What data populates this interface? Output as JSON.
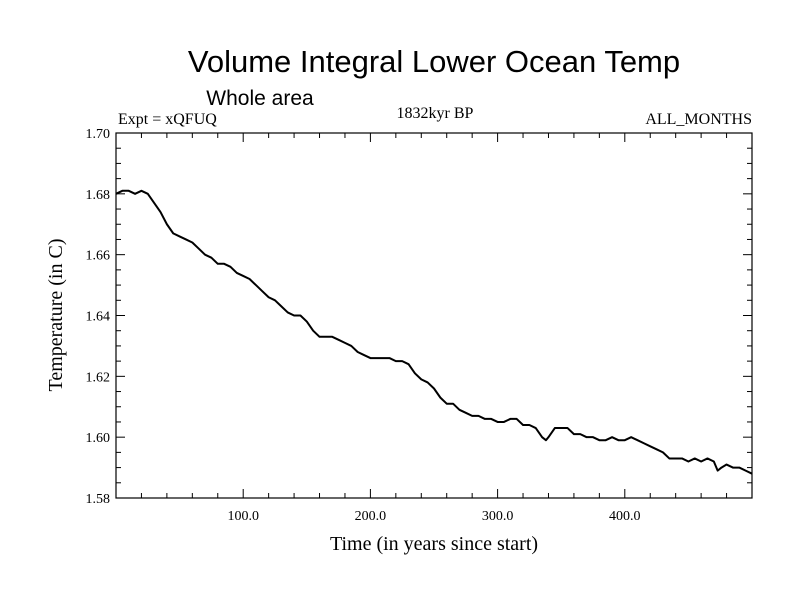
{
  "chart_data": {
    "type": "line",
    "title": "Volume Integral Lower Ocean Temp",
    "subtitle": "Whole area",
    "annotations": {
      "left": "Expt = xQFUQ",
      "center": "1832kyr BP",
      "right": "ALL_MONTHS"
    },
    "xlabel": "Time (in years since start)",
    "ylabel": "Temperature (in C)",
    "xlim": [
      0,
      500
    ],
    "ylim": [
      1.58,
      1.7
    ],
    "x_ticks": [
      100,
      200,
      300,
      400
    ],
    "x_tick_labels": [
      "100.0",
      "200.0",
      "300.0",
      "400.0"
    ],
    "y_ticks": [
      1.58,
      1.6,
      1.62,
      1.64,
      1.66,
      1.68,
      1.7
    ],
    "y_tick_labels": [
      "1.58",
      "1.60",
      "1.62",
      "1.64",
      "1.66",
      "1.68",
      "1.70"
    ],
    "grid": false,
    "series": [
      {
        "name": "Temperature",
        "color": "#000000",
        "x": [
          0,
          5,
          10,
          15,
          20,
          25,
          30,
          35,
          40,
          45,
          50,
          55,
          60,
          65,
          70,
          75,
          80,
          85,
          90,
          95,
          100,
          105,
          110,
          115,
          120,
          125,
          130,
          135,
          140,
          145,
          150,
          155,
          160,
          165,
          170,
          175,
          180,
          185,
          190,
          195,
          200,
          205,
          210,
          215,
          220,
          225,
          230,
          235,
          240,
          245,
          250,
          255,
          260,
          265,
          270,
          275,
          280,
          285,
          290,
          295,
          300,
          305,
          310,
          315,
          320,
          325,
          330,
          335,
          338,
          340,
          345,
          350,
          355,
          360,
          365,
          370,
          375,
          380,
          385,
          390,
          395,
          400,
          405,
          410,
          415,
          420,
          425,
          430,
          435,
          440,
          445,
          450,
          455,
          460,
          465,
          470,
          473,
          476,
          480,
          485,
          490,
          495,
          500
        ],
        "values": [
          1.68,
          1.681,
          1.681,
          1.68,
          1.681,
          1.68,
          1.677,
          1.674,
          1.67,
          1.667,
          1.666,
          1.665,
          1.664,
          1.662,
          1.66,
          1.659,
          1.657,
          1.657,
          1.656,
          1.654,
          1.653,
          1.652,
          1.65,
          1.648,
          1.646,
          1.645,
          1.643,
          1.641,
          1.64,
          1.64,
          1.638,
          1.635,
          1.633,
          1.633,
          1.633,
          1.632,
          1.631,
          1.63,
          1.628,
          1.627,
          1.626,
          1.626,
          1.626,
          1.626,
          1.625,
          1.625,
          1.624,
          1.621,
          1.619,
          1.618,
          1.616,
          1.613,
          1.611,
          1.611,
          1.609,
          1.608,
          1.607,
          1.607,
          1.606,
          1.606,
          1.605,
          1.605,
          1.606,
          1.606,
          1.604,
          1.604,
          1.603,
          1.6,
          1.599,
          1.6,
          1.603,
          1.603,
          1.603,
          1.601,
          1.601,
          1.6,
          1.6,
          1.599,
          1.599,
          1.6,
          1.599,
          1.599,
          1.6,
          1.599,
          1.598,
          1.597,
          1.596,
          1.595,
          1.593,
          1.593,
          1.593,
          1.592,
          1.593,
          1.592,
          1.593,
          1.592,
          1.589,
          1.59,
          1.591,
          1.59,
          1.59,
          1.589,
          1.588
        ]
      }
    ]
  }
}
